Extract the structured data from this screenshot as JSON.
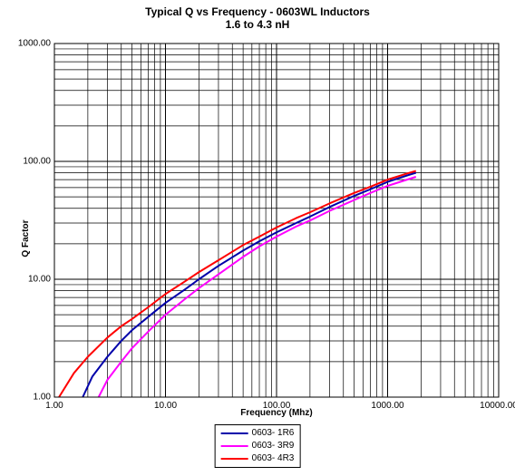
{
  "chart": {
    "type": "line-loglog",
    "title_line1": "Typical Q vs Frequency - 0603WL Inductors",
    "title_line2": "1.6 to 4.3 nH",
    "title_fontsize": 12,
    "xlabel": "Frequency (Mhz)",
    "ylabel": "Q Factor",
    "label_fontsize": 10,
    "background_color": "#ffffff",
    "grid_color": "#000000",
    "border_color": "#000000",
    "line_width": 2,
    "x": {
      "min_exp": 0,
      "max_exp": 4,
      "ticks": [
        "1.00",
        "10.00",
        "100.00",
        "1000.00",
        "10000.00"
      ]
    },
    "y": {
      "min_exp": 0,
      "max_exp": 3,
      "ticks": [
        "1.00",
        "10.00",
        "100.00",
        "1000.00"
      ]
    },
    "series": [
      {
        "name": "0603- 1R6",
        "color": "#0000aa",
        "points": [
          [
            1.8,
            1.0
          ],
          [
            2.2,
            1.5
          ],
          [
            3.0,
            2.2
          ],
          [
            4.0,
            3.0
          ],
          [
            5.0,
            3.7
          ],
          [
            7.0,
            4.8
          ],
          [
            10.0,
            6.3
          ],
          [
            15.0,
            8.2
          ],
          [
            20.0,
            10.0
          ],
          [
            30.0,
            13.0
          ],
          [
            50.0,
            17.5
          ],
          [
            70.0,
            21.0
          ],
          [
            100.0,
            25.0
          ],
          [
            150.0,
            30.0
          ],
          [
            200.0,
            34.0
          ],
          [
            300.0,
            41.0
          ],
          [
            500.0,
            51.0
          ],
          [
            700.0,
            58.0
          ],
          [
            1000.0,
            67.0
          ],
          [
            1500.0,
            76.0
          ],
          [
            1800.0,
            80.0
          ]
        ]
      },
      {
        "name": "0603- 3R9",
        "color": "#ff00ff",
        "points": [
          [
            2.5,
            1.0
          ],
          [
            3.0,
            1.4
          ],
          [
            4.0,
            2.0
          ],
          [
            5.0,
            2.6
          ],
          [
            7.0,
            3.6
          ],
          [
            10.0,
            5.0
          ],
          [
            15.0,
            6.8
          ],
          [
            20.0,
            8.4
          ],
          [
            30.0,
            11.0
          ],
          [
            50.0,
            15.5
          ],
          [
            70.0,
            19.0
          ],
          [
            100.0,
            23.0
          ],
          [
            150.0,
            28.0
          ],
          [
            200.0,
            31.5
          ],
          [
            300.0,
            38.0
          ],
          [
            500.0,
            47.0
          ],
          [
            700.0,
            54.0
          ],
          [
            1000.0,
            62.0
          ],
          [
            1500.0,
            70.0
          ],
          [
            1800.0,
            74.0
          ]
        ]
      },
      {
        "name": "0603- 4R3",
        "color": "#ff0000",
        "points": [
          [
            1.1,
            1.0
          ],
          [
            1.5,
            1.6
          ],
          [
            2.0,
            2.2
          ],
          [
            3.0,
            3.2
          ],
          [
            4.0,
            4.0
          ],
          [
            5.0,
            4.6
          ],
          [
            7.0,
            5.8
          ],
          [
            10.0,
            7.5
          ],
          [
            15.0,
            9.6
          ],
          [
            20.0,
            11.5
          ],
          [
            30.0,
            14.5
          ],
          [
            50.0,
            19.5
          ],
          [
            70.0,
            23.0
          ],
          [
            100.0,
            27.5
          ],
          [
            150.0,
            33.0
          ],
          [
            200.0,
            37.0
          ],
          [
            300.0,
            44.0
          ],
          [
            500.0,
            54.0
          ],
          [
            700.0,
            61.0
          ],
          [
            1000.0,
            70.0
          ],
          [
            1500.0,
            79.0
          ],
          [
            1800.0,
            83.0
          ]
        ]
      }
    ],
    "legend": {
      "position": "bottom-center",
      "items": [
        "0603- 1R6",
        "0603- 3R9",
        "0603- 4R3"
      ]
    }
  }
}
